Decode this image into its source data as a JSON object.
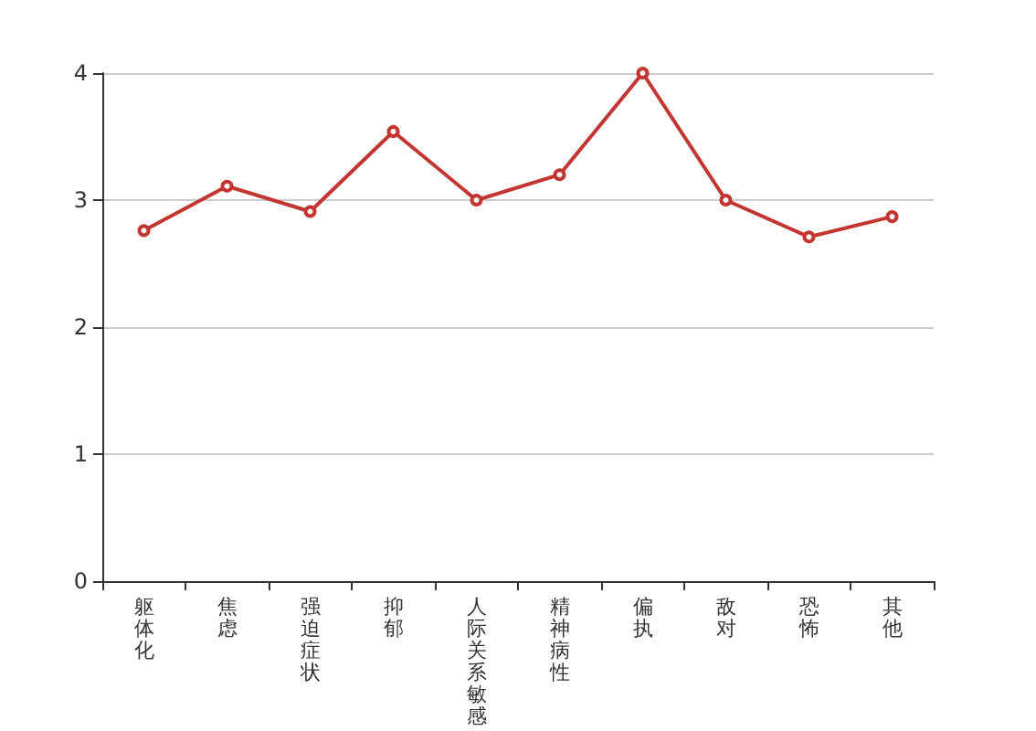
{
  "chart_data": {
    "type": "line",
    "categories": [
      "躯体化",
      "焦虑",
      "强迫症状",
      "抑郁",
      "人际关系敏感",
      "精神病性",
      "偏执",
      "敌对",
      "恐怖",
      "其他"
    ],
    "series": [
      {
        "color": "#c23531",
        "values": [
          2.76,
          3.11,
          2.91,
          3.54,
          3.0,
          3.2,
          4.0,
          3.0,
          2.71,
          2.87
        ]
      }
    ],
    "ylim": [
      0,
      4
    ],
    "yticks": [
      0,
      1,
      2,
      3,
      4
    ],
    "grid": "y",
    "marker": "circle",
    "line_style": "solid"
  }
}
